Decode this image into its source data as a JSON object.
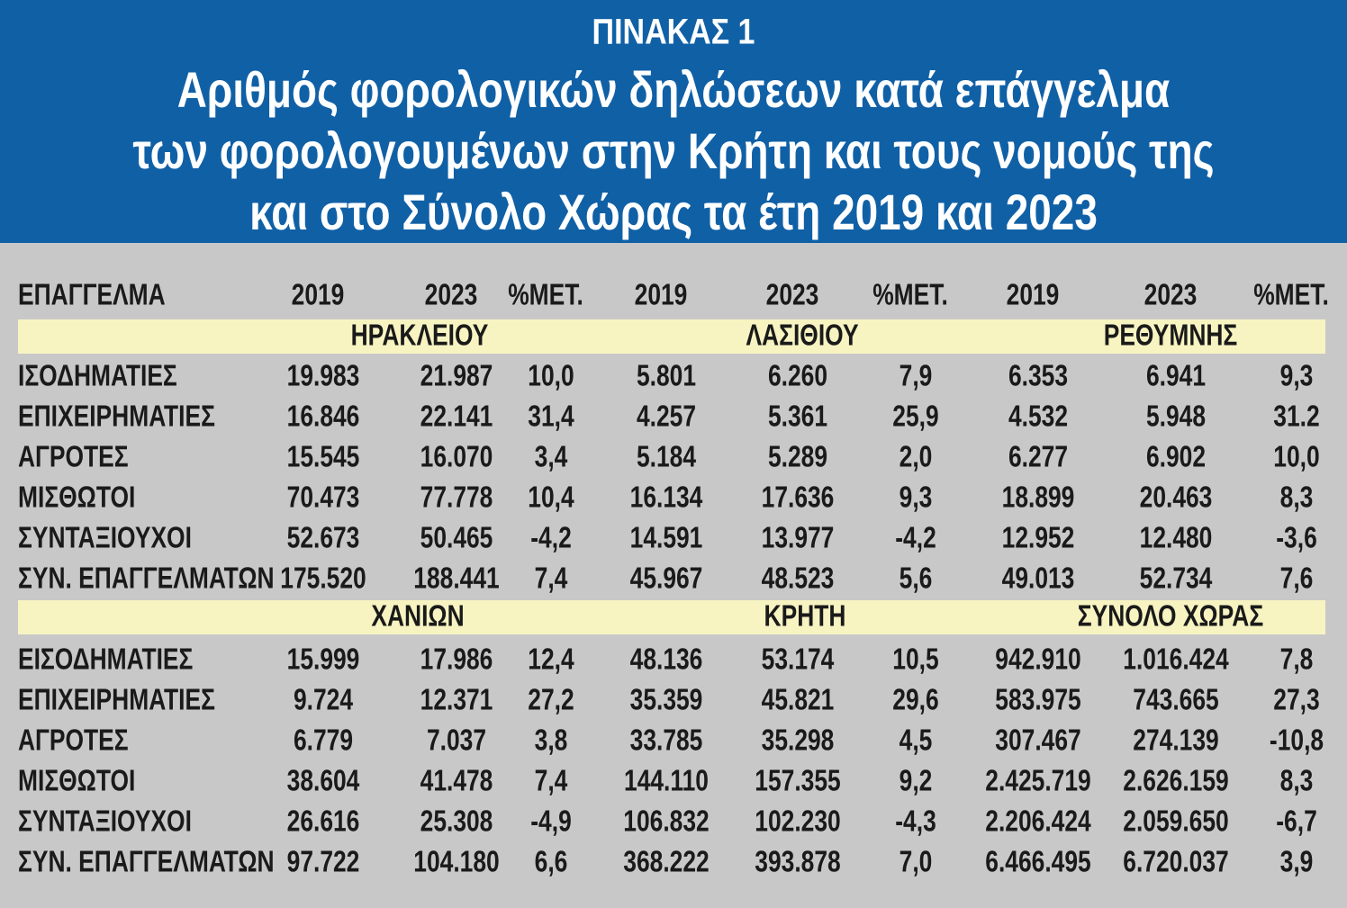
{
  "header": {
    "label": "ΠΙΝΑΚΑΣ 1",
    "title": [
      "Αριθμός φορολογικών δηλώσεων κατά επάγγελμα",
      "των φορολογουμένων στην Κρήτη και τους νομούς της",
      "και στο Σύνολο Χώρας τα έτη 2019 και 2023"
    ]
  },
  "table": {
    "columns": [
      "ΕΠΑΓΓΕΛΜΑ",
      "2019",
      "2023",
      "%ΜΕΤ.",
      "2019",
      "2023",
      "%ΜΕΤ.",
      "2019",
      "2023",
      "%ΜΕΤ."
    ],
    "sections": [
      {
        "regions": [
          "ΗΡΑΚΛΕΙΟΥ",
          "ΛΑΣΙΘΙΟΥ",
          "ΡΕΘΥΜΝΗΣ"
        ],
        "rows": [
          [
            "ΙΣΟΔΗΜΑΤΙΕΣ",
            "19.983",
            "21.987",
            "10,0",
            "5.801",
            "6.260",
            "7,9",
            "6.353",
            "6.941",
            "9,3"
          ],
          [
            "ΕΠΙΧΕΙΡΗΜΑΤΙΕΣ",
            "16.846",
            "22.141",
            "31,4",
            "4.257",
            "5.361",
            "25,9",
            "4.532",
            "5.948",
            "31.2"
          ],
          [
            "ΑΓΡΟΤΕΣ",
            "15.545",
            "16.070",
            "3,4",
            "5.184",
            "5.289",
            "2,0",
            "6.277",
            "6.902",
            "10,0"
          ],
          [
            "ΜΙΣΘΩΤΟΙ",
            "70.473",
            "77.778",
            "10,4",
            "16.134",
            "17.636",
            "9,3",
            "18.899",
            "20.463",
            "8,3"
          ],
          [
            "ΣΥΝΤΑΞΙΟΥΧΟΙ",
            "52.673",
            "50.465",
            "-4,2",
            "14.591",
            "13.977",
            "-4,2",
            "12.952",
            "12.480",
            "-3,6"
          ],
          [
            "ΣΥΝ. ΕΠΑΓΓΕΛΜΑΤΩΝ",
            "175.520",
            "188.441",
            "7,4",
            "45.967",
            "48.523",
            "5,6",
            "49.013",
            "52.734",
            "7,6"
          ]
        ]
      },
      {
        "regions": [
          "ΧΑΝΙΩΝ",
          "ΚΡΗΤΗ",
          "ΣΥΝΟΛΟ ΧΩΡΑΣ"
        ],
        "rows": [
          [
            "ΕΙΣΟΔΗΜΑΤΙΕΣ",
            "15.999",
            "17.986",
            "12,4",
            "48.136",
            "53.174",
            "10,5",
            "942.910",
            "1.016.424",
            "7,8"
          ],
          [
            "ΕΠΙΧΕΙΡΗΜΑΤΙΕΣ",
            "9.724",
            "12.371",
            "27,2",
            "35.359",
            "45.821",
            "29,6",
            "583.975",
            "743.665",
            "27,3"
          ],
          [
            "ΑΓΡΟΤΕΣ",
            "6.779",
            "7.037",
            "3,8",
            "33.785",
            "35.298",
            "4,5",
            "307.467",
            "274.139",
            "-10,8"
          ],
          [
            "ΜΙΣΘΩΤΟΙ",
            "38.604",
            "41.478",
            "7,4",
            "144.110",
            "157.355",
            "9,2",
            "2.425.719",
            "2.626.159",
            "8,3"
          ],
          [
            "ΣΥΝΤΑΞΙΟΥΧΟΙ",
            "26.616",
            "25.308",
            "-4,9",
            "106.832",
            "102.230",
            "-4,3",
            "2.206.424",
            "2.059.650",
            "-6,7"
          ],
          [
            "ΣΥΝ. ΕΠΑΓΓΕΛΜΑΤΩΝ",
            "97.722",
            "104.180",
            "6,6",
            "368.222",
            "393.878",
            "7,0",
            "6.466.495",
            "6.720.037",
            "3,9"
          ]
        ]
      }
    ]
  }
}
